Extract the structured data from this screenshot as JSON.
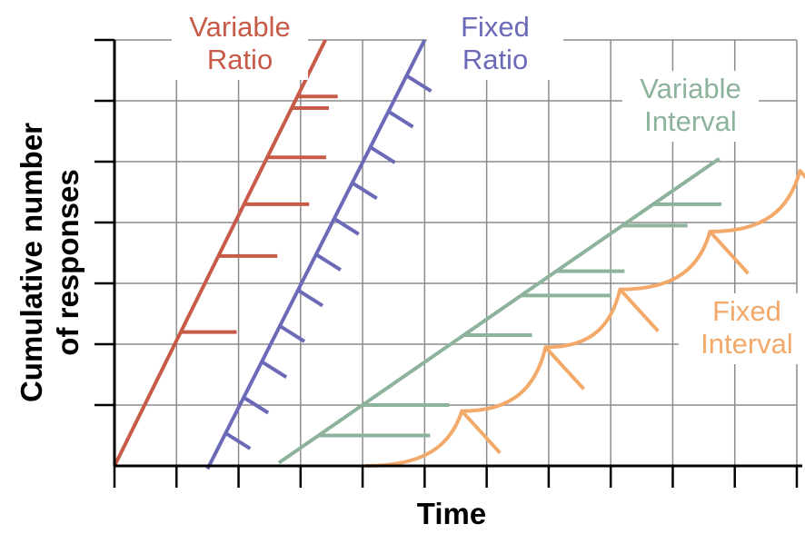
{
  "chart_data": {
    "type": "line",
    "title": "",
    "xlabel": "Time",
    "ylabel": [
      "Cumulative number",
      "of responses"
    ],
    "xlim": [
      0,
      11
    ],
    "ylim": [
      0,
      7
    ],
    "grid": true,
    "legend": "direct labels next to each line",
    "x_ticks": 11,
    "y_ticks": 7,
    "series": [
      {
        "name": "Variable Ratio",
        "label_lines": [
          "Variable",
          "Ratio"
        ],
        "color": "#c85a48",
        "x": [
          0,
          3.4
        ],
        "y": [
          0,
          7
        ],
        "response_marks": [
          {
            "y": 6.07,
            "len": 0.65
          },
          {
            "y": 5.88,
            "len": 0.6
          },
          {
            "y": 5.07,
            "len": 0.95
          },
          {
            "y": 4.3,
            "len": 1.05
          },
          {
            "y": 3.45,
            "len": 0.95
          },
          {
            "y": 2.2,
            "len": 0.9
          }
        ]
      },
      {
        "name": "Fixed Ratio",
        "label_lines": [
          "Fixed",
          "Ratio"
        ],
        "color": "#6a6ab8",
        "x": [
          1.5,
          5.0
        ],
        "y": [
          -0.05,
          7
        ],
        "hatch_count": 11
      },
      {
        "name": "Variable Interval",
        "label_lines": [
          "Variable",
          "Interval"
        ],
        "color": "#8db39c",
        "x": [
          2.65,
          9.75
        ],
        "y": [
          0.05,
          5.05
        ],
        "response_marks": [
          {
            "y": 0.5,
            "len": 1.8
          },
          {
            "y": 1.0,
            "len": 1.4
          },
          {
            "y": 2.15,
            "len": 1.1
          },
          {
            "y": 2.8,
            "len": 1.45
          },
          {
            "y": 3.2,
            "len": 1.1
          },
          {
            "y": 3.95,
            "len": 1.05
          },
          {
            "y": 4.3,
            "len": 1.1
          }
        ]
      },
      {
        "name": "Fixed Interval",
        "label_lines": [
          "Fixed",
          "Interval"
        ],
        "color": "#f2a96a",
        "scallops": [
          {
            "x0": 4.05,
            "x1": 5.6,
            "y0": 0.0,
            "y1": 0.9
          },
          {
            "x0": 5.6,
            "x1": 6.95,
            "y0": 0.9,
            "y1": 1.95
          },
          {
            "x0": 6.95,
            "x1": 8.15,
            "y0": 1.95,
            "y1": 2.9
          },
          {
            "x0": 8.15,
            "x1": 9.6,
            "y0": 2.9,
            "y1": 3.85
          },
          {
            "x0": 9.6,
            "x1": 11.05,
            "y0": 3.85,
            "y1": 4.85
          }
        ]
      }
    ]
  }
}
